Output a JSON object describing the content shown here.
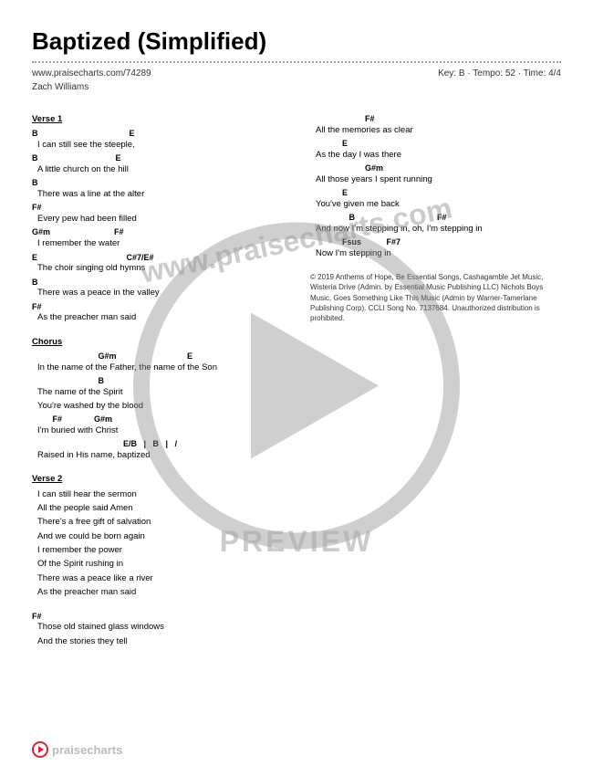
{
  "title": "Baptized (Simplified)",
  "url": "www.praisecharts.com/74289",
  "key": "Key: B",
  "tempo": "Tempo: 52",
  "time": "Time: 4/4",
  "artist": "Zach Williams",
  "watermark_url": "www.praisecharts.com",
  "preview": "PREVIEW",
  "footer": "praisecharts",
  "col1": {
    "v1_label": "Verse 1",
    "v1": [
      {
        "c": "B                                        E",
        "l": "I can still see the steeple,"
      },
      {
        "c": "B                                  E",
        "l": "A little church on the hill"
      },
      {
        "c": "B",
        "l": "There was a line at the alter"
      },
      {
        "c": "F#",
        "l": "Every pew had been filled"
      },
      {
        "c": "G#m                            F#",
        "l": "I remember the water"
      },
      {
        "c": "E                                       C#7/E#",
        "l": "The choir singing old hymns"
      },
      {
        "c": "B",
        "l": "There was a peace in the valley"
      },
      {
        "c": "F#",
        "l": "As the preacher man said"
      }
    ],
    "ch_label": "Chorus",
    "ch": [
      {
        "c": "                             G#m                               E",
        "l": "In the name of the Father, the name of the Son"
      },
      {
        "c": "                             B",
        "l": "The name of the Spirit"
      },
      {
        "c": "",
        "l": "You're washed by the blood"
      },
      {
        "c": "         F#              G#m",
        "l": "I'm buried with Christ"
      },
      {
        "c": "                                        E/B   |   B   |   /",
        "l": "Raised in His name, baptized"
      }
    ],
    "v2_label": "Verse 2",
    "v2": [
      "I can still hear the sermon",
      "All the people said Amen",
      "There's a free gift of salvation",
      "And we could be born again",
      "I remember the power",
      "Of the Spirit rushing in",
      "There was a peace like a river",
      "As the preacher man said"
    ],
    "br_chord1": "         F#",
    "br_line1": "Those old stained glass windows",
    "br_line2": "And the stories they tell"
  },
  "col2": {
    "lines": [
      {
        "c": "                        F#",
        "l": "All the memories as clear"
      },
      {
        "c": "              E",
        "l": "As the day I was there"
      },
      {
        "c": "                        G#m",
        "l": "All those years I spent running"
      },
      {
        "c": "              E",
        "l": "You've given me back"
      },
      {
        "c": "                 B                                    F#",
        "l": "And now I'm stepping in, oh, I'm stepping in"
      },
      {
        "c": "              Fsus           F#7",
        "l": "Now I'm      stepping  in"
      }
    ],
    "copyright": "© 2019 Anthems of Hope, Be Essential Songs, Cashagamble Jet Music, Wisteria Drive (Admin. by Essential Music Publishing LLC) Nichols Boys Music, Goes Something Like This Music (Admin by Warner-Tamerlane Publishing Corp). CCLI Song No. 7137684. Unauthorized distribution is prohibited."
  }
}
